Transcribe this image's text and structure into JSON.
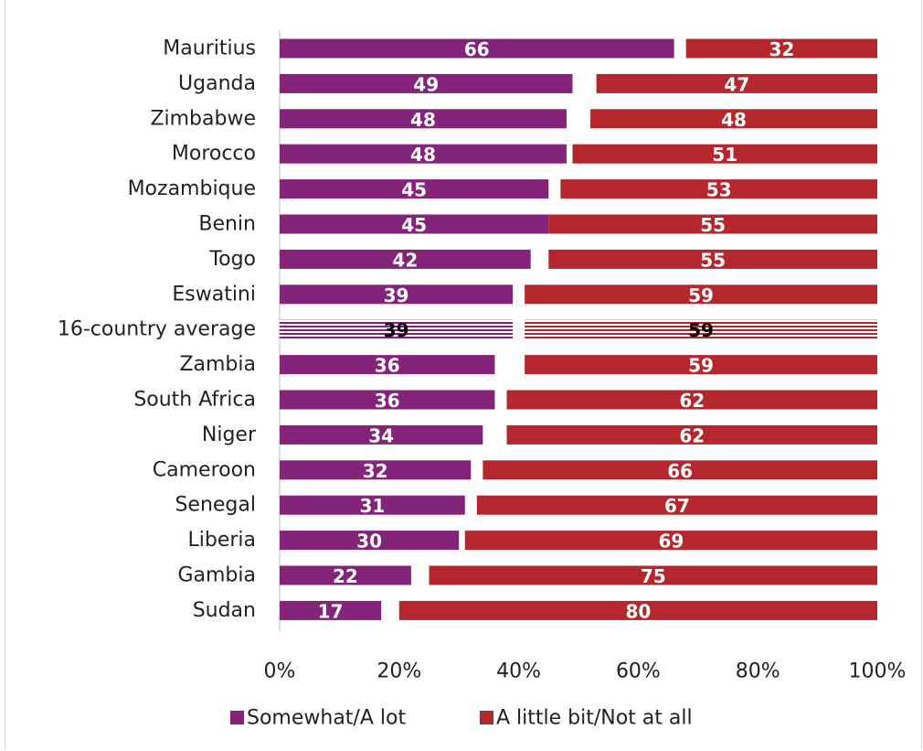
{
  "chart_data": {
    "type": "bar",
    "orientation": "horizontal",
    "stacked": true,
    "title": "",
    "xlabel": "",
    "ylabel": "",
    "xlim": [
      0,
      100
    ],
    "x_ticks": [
      "0%",
      "20%",
      "40%",
      "60%",
      "80%",
      "100%"
    ],
    "grid": false,
    "legend_position": "bottom",
    "categories": [
      "Mauritius",
      "Uganda",
      "Zimbabwe",
      "Morocco",
      "Mozambique",
      "Benin",
      "Togo",
      "Eswatini",
      "16-country average",
      "Zambia",
      "South Africa",
      "Niger",
      "Cameroon",
      "Senegal",
      "Liberia",
      "Gambia",
      "Sudan"
    ],
    "highlight_category": "16-country average",
    "series": [
      {
        "name": "Somewhat/A lot",
        "color": "#84237a",
        "values": [
          66,
          49,
          48,
          48,
          45,
          45,
          42,
          39,
          39,
          36,
          36,
          34,
          32,
          31,
          30,
          22,
          17
        ]
      },
      {
        "name": "A little bit/Not at all",
        "color": "#b5272d",
        "values": [
          32,
          47,
          48,
          51,
          53,
          55,
          55,
          59,
          59,
          59,
          62,
          62,
          66,
          67,
          69,
          75,
          80
        ]
      }
    ]
  }
}
